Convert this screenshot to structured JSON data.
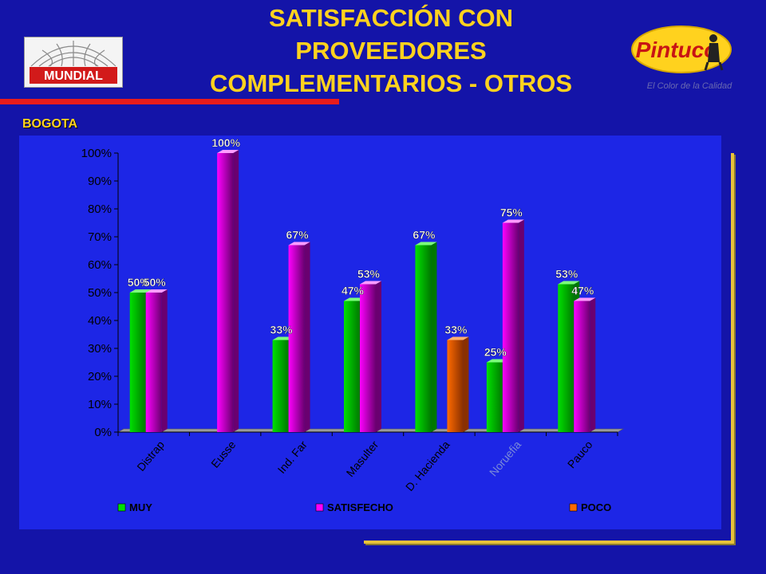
{
  "header": {
    "title_lines": [
      "SATISFACCIÓN CON",
      "PROVEEDORES",
      "COMPLEMENTARIOS - OTROS"
    ],
    "region": "BOGOTA",
    "logo_left_text": "MUNDIAL",
    "logo_right_text": "Pintuco",
    "logo_right_tagline": "El Color de la Calidad"
  },
  "colors": {
    "background": "#1414a8",
    "panel": "#1d26e6",
    "title": "#ffd21e",
    "muy": "#00e000",
    "satisfecho": "#ff00ff",
    "poco": "#ff6a00"
  },
  "chart_data": {
    "type": "bar",
    "categories": [
      "Distrap",
      "Eusse",
      "Ind. Far",
      "Masulter",
      "D. Hacienda",
      "Noruefia",
      "Pauco"
    ],
    "series": [
      {
        "name": "MUY",
        "values": [
          50,
          0,
          33,
          47,
          67,
          25,
          53
        ]
      },
      {
        "name": "SATISFECHO",
        "values": [
          50,
          100,
          67,
          53,
          0,
          75,
          47
        ]
      },
      {
        "name": "POCO",
        "values": [
          0,
          0,
          0,
          0,
          33,
          0,
          0
        ]
      }
    ],
    "data_labels": [
      [
        "50%",
        null,
        "33%",
        "47%",
        "67%",
        "25%",
        "53%"
      ],
      [
        "50%",
        "100%",
        "67%",
        "53%",
        null,
        "75%",
        "47%"
      ],
      [
        null,
        null,
        null,
        null,
        "33%",
        null,
        null
      ]
    ],
    "yticks": [
      "0%",
      "10%",
      "20%",
      "30%",
      "40%",
      "50%",
      "60%",
      "70%",
      "80%",
      "90%",
      "100%"
    ],
    "ylim": [
      0,
      100
    ],
    "legend_position": "bottom",
    "grid": false
  }
}
